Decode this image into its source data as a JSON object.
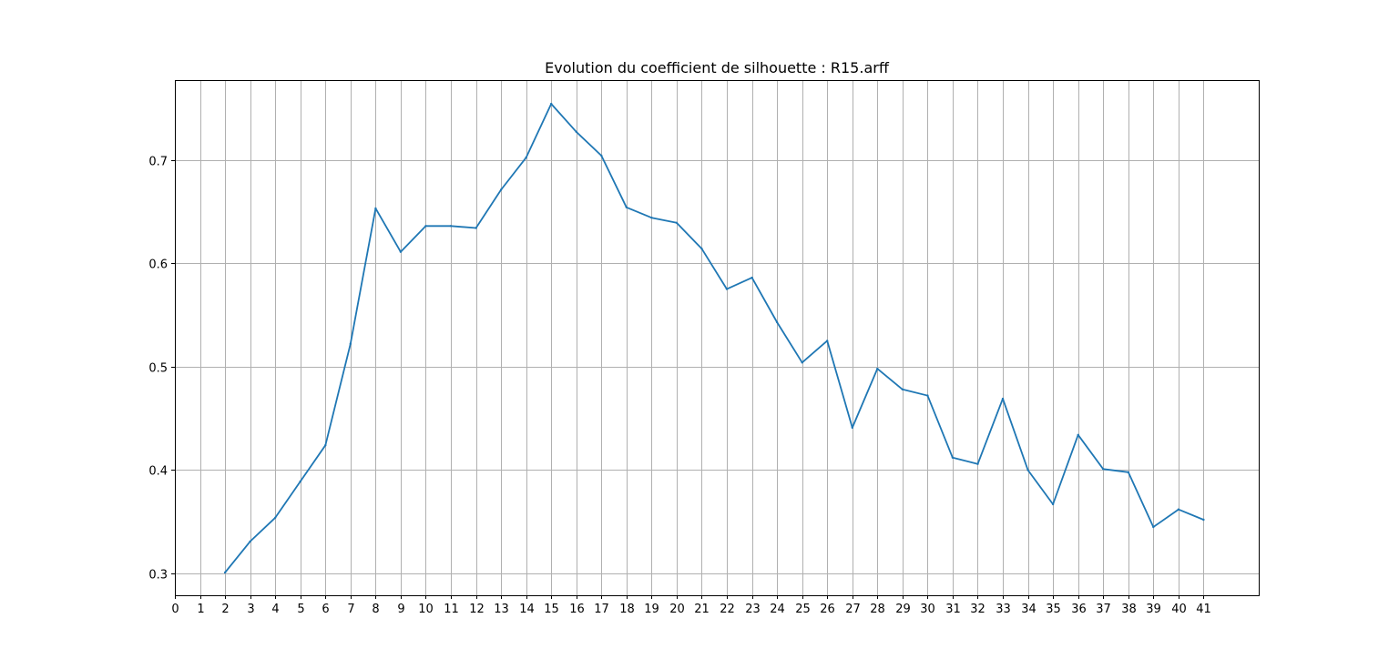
{
  "chart_data": {
    "type": "line",
    "title": "Evolution du coefficient de silhouette : R15.arff",
    "xlabel": "",
    "ylabel": "",
    "grid": true,
    "xlim": [
      0,
      43.2
    ],
    "ylim": [
      0.279,
      0.777
    ],
    "xticks": [
      0,
      1,
      2,
      3,
      4,
      5,
      6,
      7,
      8,
      9,
      10,
      11,
      12,
      13,
      14,
      15,
      16,
      17,
      18,
      19,
      20,
      21,
      22,
      23,
      24,
      25,
      26,
      27,
      28,
      29,
      30,
      31,
      32,
      33,
      34,
      35,
      36,
      37,
      38,
      39,
      40,
      41
    ],
    "yticks": [
      0.3,
      0.4,
      0.5,
      0.6,
      0.7
    ],
    "ytick_labels": [
      "0.3",
      "0.4",
      "0.5",
      "0.6",
      "0.7"
    ],
    "series": [
      {
        "color": "#1f77b4",
        "x": [
          2,
          3,
          4,
          5,
          6,
          7,
          8,
          9,
          10,
          11,
          12,
          13,
          14,
          15,
          16,
          17,
          18,
          19,
          20,
          21,
          22,
          23,
          24,
          25,
          26,
          27,
          28,
          29,
          30,
          31,
          32,
          33,
          34,
          35,
          36,
          37,
          38,
          39,
          40,
          41
        ],
        "y": [
          0.301,
          0.331,
          0.354,
          0.389,
          0.424,
          0.522,
          0.653,
          0.611,
          0.636,
          0.636,
          0.634,
          0.671,
          0.702,
          0.754,
          0.727,
          0.704,
          0.654,
          0.644,
          0.639,
          0.614,
          0.575,
          0.586,
          0.543,
          0.504,
          0.525,
          0.441,
          0.498,
          0.478,
          0.472,
          0.412,
          0.406,
          0.469,
          0.4,
          0.367,
          0.434,
          0.401,
          0.398,
          0.345,
          0.362,
          0.352
        ]
      }
    ]
  }
}
